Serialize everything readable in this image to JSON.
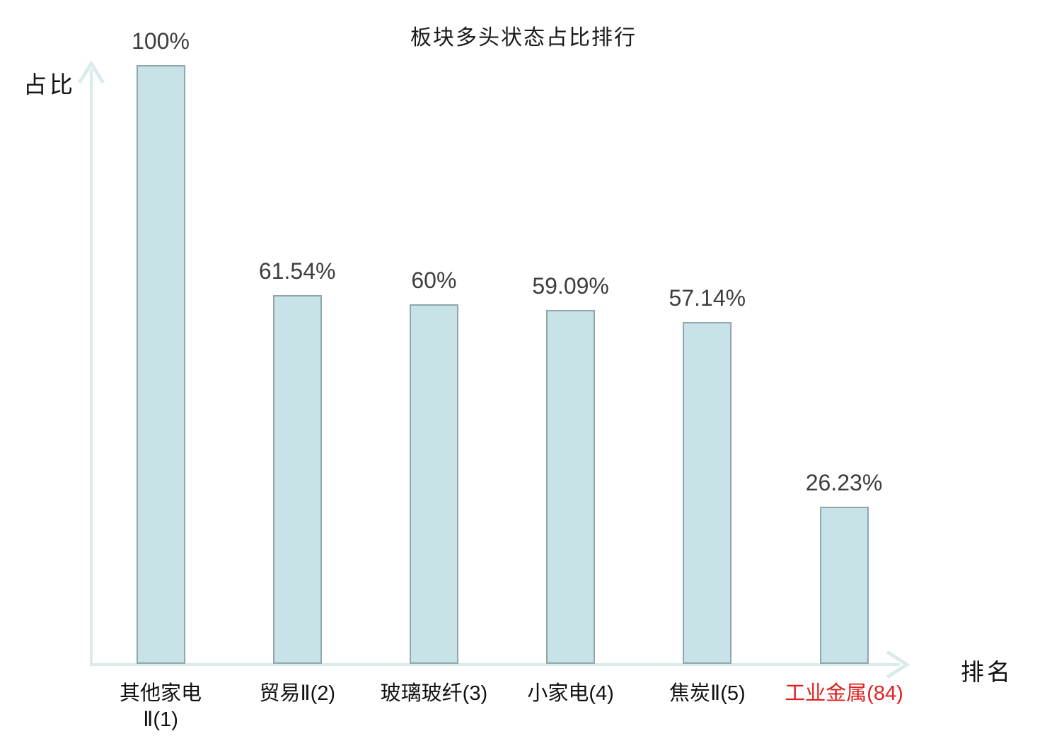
{
  "title": "板块多头状态占比排行",
  "y_axis_label": "占比",
  "x_axis_label": "排名",
  "chart_data": {
    "type": "bar",
    "title": "板块多头状态占比排行",
    "xlabel": "排名",
    "ylabel": "占比",
    "ylim": [
      0,
      100
    ],
    "grid": false,
    "legend": "none",
    "categories": [
      "其他家电Ⅱ(1)",
      "贸易Ⅱ(2)",
      "玻璃玻纤(3)",
      "小家电(4)",
      "焦炭Ⅱ(5)",
      "工业金属(84)"
    ],
    "values": [
      100,
      61.54,
      60,
      59.09,
      57.14,
      26.23
    ],
    "value_labels": [
      "100%",
      "61.54%",
      "60%",
      "59.09%",
      "57.14%",
      "26.23%"
    ],
    "highlight_index": 5
  },
  "colors": {
    "background": "#ffffff",
    "bar_fill": "#c8e3e7",
    "bar_border": "#8fa6ac",
    "axis": "#d9eceb",
    "value_text": "#3d3d3d",
    "category_text": "#111111",
    "highlight_text": "#e02020"
  }
}
